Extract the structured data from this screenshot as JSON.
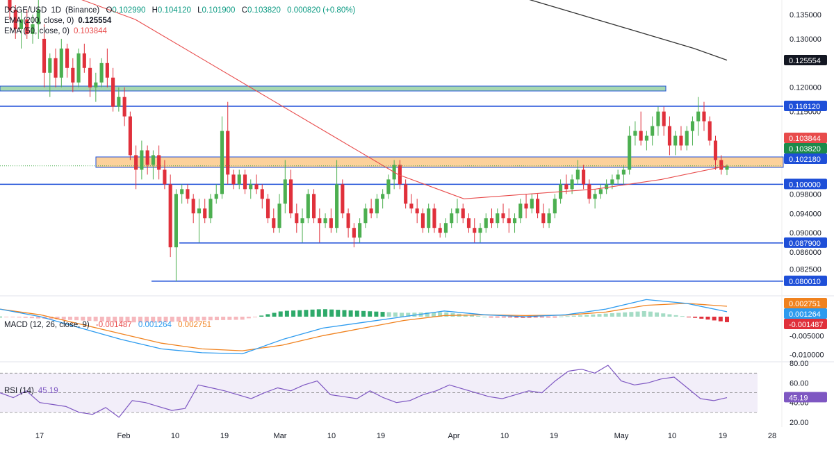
{
  "main": {
    "symbol": "DOGE/USD",
    "interval": "1D",
    "exchange": "(Binance)",
    "ohlc": {
      "O": "0.102990",
      "H": "0.104120",
      "L": "0.101900",
      "C": "0.103820",
      "change": "0.000820 (+0.80%)"
    },
    "ema200_label": "EMA (200, close, 0)",
    "ema200_value": "0.125554",
    "ema50_label": "EMA (50, close, 0)",
    "ema50_value": "0.103844"
  },
  "macd": {
    "label": "MACD (12, 26, close, 9)",
    "hist_value": "-0.001487",
    "macd_value": "0.001264",
    "signal_value": "0.002751"
  },
  "rsi": {
    "label": "RSI (14)",
    "value": "45.19"
  },
  "colors": {
    "up": "#4caf50",
    "down": "#e0303b",
    "ema50": "#e84b4b",
    "ema200": "#333333",
    "level": "#1e4fd8",
    "macd": "#2d9bef",
    "signal": "#f0821e",
    "rsi": "#7e57c2",
    "zone_green": "#a7d8b0",
    "zone_orange": "#fcd19b"
  },
  "chart_data": [
    {
      "type": "candlestick",
      "title": "DOGE/USD (Binance), 1D",
      "y_ticks": [
        "0.135000",
        "0.130000",
        "0.120000",
        "0.115000",
        "0.110000",
        "0.098000",
        "0.094000",
        "0.090000",
        "0.086000",
        "0.082500"
      ],
      "x_ticks": [
        "17",
        "Feb",
        "10",
        "19",
        "Mar",
        "10",
        "19",
        "Apr",
        "10",
        "19",
        "May",
        "10",
        "19",
        "28"
      ],
      "ylim": [
        0.076,
        0.137
      ],
      "horizontal_levels": [
        0.1161,
        0.1,
        0.0879,
        0.08001
      ],
      "level_labels": [
        "0.116120",
        "0.100000",
        "0.087900",
        "0.080010"
      ],
      "zones": [
        {
          "from": 0.115,
          "to": 0.117,
          "color": "green"
        },
        {
          "from": 0.1,
          "to": 0.1022,
          "color": "orange"
        }
      ],
      "price_badges": [
        {
          "label": "0.125554",
          "value": 0.125554,
          "kind": "ema200"
        },
        {
          "label": "0.103844",
          "value": 0.103844,
          "kind": "ema50"
        },
        {
          "label": "0.103820",
          "value": 0.10382,
          "kind": "last"
        },
        {
          "label": "0.102180",
          "value": 0.10218,
          "kind": "level"
        }
      ],
      "ohlc": [
        [
          0.14,
          0.141,
          0.134,
          0.136
        ],
        [
          0.136,
          0.137,
          0.13,
          0.132
        ],
        [
          0.132,
          0.136,
          0.128,
          0.134
        ],
        [
          0.134,
          0.136,
          0.13,
          0.131
        ],
        [
          0.131,
          0.135,
          0.129,
          0.133
        ],
        [
          0.133,
          0.138,
          0.13,
          0.136
        ],
        [
          0.13,
          0.133,
          0.12,
          0.123
        ],
        [
          0.123,
          0.127,
          0.118,
          0.126
        ],
        [
          0.126,
          0.128,
          0.12,
          0.122
        ],
        [
          0.122,
          0.13,
          0.12,
          0.128
        ],
        [
          0.128,
          0.129,
          0.122,
          0.124
        ],
        [
          0.124,
          0.126,
          0.119,
          0.121
        ],
        [
          0.121,
          0.128,
          0.12,
          0.127
        ],
        [
          0.127,
          0.129,
          0.123,
          0.124
        ],
        [
          0.124,
          0.126,
          0.118,
          0.12
        ],
        [
          0.12,
          0.123,
          0.117,
          0.121
        ],
        [
          0.121,
          0.126,
          0.12,
          0.125
        ],
        [
          0.125,
          0.128,
          0.12,
          0.122
        ],
        [
          0.122,
          0.124,
          0.115,
          0.116
        ],
        [
          0.116,
          0.12,
          0.115,
          0.118
        ],
        [
          0.118,
          0.12,
          0.112,
          0.114
        ],
        [
          0.114,
          0.115,
          0.105,
          0.106
        ],
        [
          0.106,
          0.108,
          0.099,
          0.103
        ],
        [
          0.103,
          0.109,
          0.101,
          0.107
        ],
        [
          0.107,
          0.108,
          0.102,
          0.104
        ],
        [
          0.104,
          0.107,
          0.101,
          0.106
        ],
        [
          0.106,
          0.108,
          0.101,
          0.103
        ],
        [
          0.103,
          0.105,
          0.099,
          0.1
        ],
        [
          0.1,
          0.102,
          0.085,
          0.087
        ],
        [
          0.087,
          0.099,
          0.08,
          0.098
        ],
        [
          0.098,
          0.1,
          0.096,
          0.099
        ],
        [
          0.099,
          0.1,
          0.096,
          0.097
        ],
        [
          0.097,
          0.098,
          0.092,
          0.094
        ],
        [
          0.094,
          0.097,
          0.088,
          0.095
        ],
        [
          0.095,
          0.097,
          0.092,
          0.093
        ],
        [
          0.093,
          0.098,
          0.092,
          0.097
        ],
        [
          0.097,
          0.1,
          0.096,
          0.098
        ],
        [
          0.098,
          0.114,
          0.097,
          0.111
        ],
        [
          0.111,
          0.117,
          0.1,
          0.102
        ],
        [
          0.102,
          0.103,
          0.099,
          0.1
        ],
        [
          0.1,
          0.103,
          0.099,
          0.102
        ],
        [
          0.102,
          0.103,
          0.098,
          0.099
        ],
        [
          0.099,
          0.101,
          0.097,
          0.1
        ],
        [
          0.1,
          0.102,
          0.098,
          0.099
        ],
        [
          0.099,
          0.1,
          0.095,
          0.097
        ],
        [
          0.097,
          0.098,
          0.092,
          0.093
        ],
        [
          0.093,
          0.095,
          0.09,
          0.091
        ],
        [
          0.091,
          0.098,
          0.09,
          0.096
        ],
        [
          0.096,
          0.105,
          0.094,
          0.101
        ],
        [
          0.101,
          0.103,
          0.093,
          0.094
        ],
        [
          0.094,
          0.096,
          0.09,
          0.092
        ],
        [
          0.092,
          0.095,
          0.088,
          0.093
        ],
        [
          0.093,
          0.099,
          0.092,
          0.098
        ],
        [
          0.098,
          0.099,
          0.092,
          0.093
        ],
        [
          0.093,
          0.095,
          0.088,
          0.092
        ],
        [
          0.092,
          0.094,
          0.091,
          0.093
        ],
        [
          0.093,
          0.095,
          0.09,
          0.091
        ],
        [
          0.091,
          0.105,
          0.09,
          0.1
        ],
        [
          0.1,
          0.101,
          0.093,
          0.094
        ],
        [
          0.094,
          0.095,
          0.089,
          0.091
        ],
        [
          0.091,
          0.092,
          0.087,
          0.089
        ],
        [
          0.089,
          0.093,
          0.088,
          0.092
        ],
        [
          0.092,
          0.096,
          0.091,
          0.095
        ],
        [
          0.095,
          0.097,
          0.093,
          0.094
        ],
        [
          0.094,
          0.098,
          0.093,
          0.097
        ],
        [
          0.097,
          0.099,
          0.095,
          0.098
        ],
        [
          0.098,
          0.102,
          0.097,
          0.101
        ],
        [
          0.101,
          0.105,
          0.099,
          0.104
        ],
        [
          0.104,
          0.105,
          0.099,
          0.1
        ],
        [
          0.1,
          0.101,
          0.095,
          0.096
        ],
        [
          0.096,
          0.098,
          0.094,
          0.095
        ],
        [
          0.095,
          0.097,
          0.092,
          0.094
        ],
        [
          0.094,
          0.095,
          0.09,
          0.091
        ],
        [
          0.091,
          0.096,
          0.09,
          0.095
        ],
        [
          0.095,
          0.096,
          0.09,
          0.091
        ],
        [
          0.091,
          0.092,
          0.089,
          0.09
        ],
        [
          0.09,
          0.093,
          0.089,
          0.092
        ],
        [
          0.092,
          0.095,
          0.091,
          0.094
        ],
        [
          0.094,
          0.097,
          0.092,
          0.095
        ],
        [
          0.095,
          0.096,
          0.092,
          0.093
        ],
        [
          0.093,
          0.094,
          0.09,
          0.091
        ],
        [
          0.091,
          0.093,
          0.088,
          0.09
        ],
        [
          0.09,
          0.092,
          0.088,
          0.091
        ],
        [
          0.091,
          0.094,
          0.09,
          0.093
        ],
        [
          0.093,
          0.095,
          0.091,
          0.092
        ],
        [
          0.092,
          0.095,
          0.091,
          0.094
        ],
        [
          0.094,
          0.096,
          0.092,
          0.093
        ],
        [
          0.093,
          0.095,
          0.09,
          0.092
        ],
        [
          0.092,
          0.094,
          0.09,
          0.093
        ],
        [
          0.093,
          0.097,
          0.092,
          0.096
        ],
        [
          0.096,
          0.098,
          0.093,
          0.095
        ],
        [
          0.095,
          0.098,
          0.094,
          0.097
        ],
        [
          0.097,
          0.098,
          0.093,
          0.094
        ],
        [
          0.094,
          0.096,
          0.091,
          0.092
        ],
        [
          0.092,
          0.095,
          0.091,
          0.094
        ],
        [
          0.094,
          0.098,
          0.093,
          0.097
        ],
        [
          0.097,
          0.101,
          0.096,
          0.1
        ],
        [
          0.1,
          0.102,
          0.098,
          0.099
        ],
        [
          0.099,
          0.102,
          0.098,
          0.101
        ],
        [
          0.101,
          0.105,
          0.1,
          0.103
        ],
        [
          0.103,
          0.104,
          0.099,
          0.1
        ],
        [
          0.1,
          0.101,
          0.096,
          0.097
        ],
        [
          0.097,
          0.099,
          0.095,
          0.098
        ],
        [
          0.098,
          0.1,
          0.097,
          0.099
        ],
        [
          0.099,
          0.101,
          0.098,
          0.1
        ],
        [
          0.1,
          0.102,
          0.099,
          0.101
        ],
        [
          0.101,
          0.103,
          0.1,
          0.102
        ],
        [
          0.102,
          0.104,
          0.1,
          0.103
        ],
        [
          0.103,
          0.112,
          0.102,
          0.11
        ],
        [
          0.11,
          0.113,
          0.108,
          0.111
        ],
        [
          0.111,
          0.115,
          0.108,
          0.109
        ],
        [
          0.109,
          0.111,
          0.107,
          0.11
        ],
        [
          0.11,
          0.114,
          0.108,
          0.112
        ],
        [
          0.112,
          0.116,
          0.11,
          0.115
        ],
        [
          0.115,
          0.116,
          0.11,
          0.112
        ],
        [
          0.112,
          0.114,
          0.106,
          0.108
        ],
        [
          0.108,
          0.111,
          0.106,
          0.11
        ],
        [
          0.11,
          0.112,
          0.107,
          0.108
        ],
        [
          0.108,
          0.112,
          0.107,
          0.111
        ],
        [
          0.111,
          0.114,
          0.108,
          0.113
        ],
        [
          0.113,
          0.118,
          0.11,
          0.115
        ],
        [
          0.115,
          0.117,
          0.111,
          0.113
        ],
        [
          0.113,
          0.114,
          0.108,
          0.109
        ],
        [
          0.109,
          0.11,
          0.103,
          0.105
        ],
        [
          0.105,
          0.106,
          0.102,
          0.103
        ],
        [
          0.103,
          0.1041,
          0.1019,
          0.1038
        ]
      ],
      "ema200": [
        0.142,
        0.14,
        0.138,
        0.136,
        0.134,
        0.132,
        0.13,
        0.128,
        0.1256
      ],
      "ema50": [
        0.139,
        0.134,
        0.126,
        0.118,
        0.11,
        0.102,
        0.097,
        0.098,
        0.099,
        0.101,
        0.1038
      ]
    },
    {
      "type": "line",
      "title": "MACD (12, 26, close, 9)",
      "y_ticks": [
        "-0.005000",
        "-0.010000"
      ],
      "series": [
        {
          "name": "MACD",
          "values": [
            0.002,
            0.0,
            -0.003,
            -0.006,
            -0.0085,
            -0.0095,
            -0.0098,
            -0.006,
            -0.003,
            -0.0015,
            0.0,
            0.0015,
            0.0005,
            0.0,
            0.0005,
            0.002,
            0.0045,
            0.0035,
            0.0013
          ]
        },
        {
          "name": "Signal",
          "values": [
            0.002,
            0.0005,
            -0.002,
            -0.0045,
            -0.007,
            -0.0085,
            -0.009,
            -0.0075,
            -0.005,
            -0.003,
            -0.001,
            0.0003,
            0.0005,
            0.0003,
            0.0004,
            0.0012,
            0.003,
            0.0035,
            0.00275
          ]
        }
      ],
      "badges": [
        "0.002751",
        "0.001264",
        "-0.001487"
      ]
    },
    {
      "type": "line",
      "title": "RSI (14)",
      "y_ticks": [
        "80.00",
        "60.00",
        "40.00",
        "20.00"
      ],
      "levels": [
        70,
        50,
        30
      ],
      "series": [
        {
          "name": "RSI",
          "values": [
            50,
            45,
            52,
            40,
            38,
            36,
            30,
            28,
            35,
            25,
            42,
            40,
            36,
            32,
            34,
            58,
            55,
            52,
            48,
            44,
            50,
            55,
            52,
            58,
            62,
            48,
            46,
            44,
            52,
            45,
            40,
            42,
            48,
            52,
            58,
            54,
            50,
            46,
            44,
            48,
            52,
            50,
            62,
            72,
            74,
            70,
            78,
            62,
            58,
            60,
            64,
            66,
            55,
            44,
            42,
            45
          ]
        }
      ],
      "badge": "45.19"
    }
  ]
}
